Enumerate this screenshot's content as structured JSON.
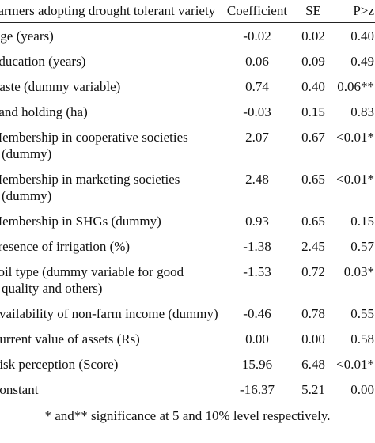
{
  "table": {
    "headers": {
      "variable": "Farmers adopting drought tolerant variety",
      "coefficient": "Coefficient",
      "se": "SE",
      "p": "P>z"
    },
    "rows": [
      {
        "variable": "Age (years)",
        "coefficient": "-0.02",
        "se": "0.02",
        "p": "0.40"
      },
      {
        "variable": "Education (years)",
        "coefficient": "0.06",
        "se": "0.09",
        "p": "0.49"
      },
      {
        "variable": "Caste (dummy variable)",
        "coefficient": "0.74",
        "se": "0.40",
        "p": "0.06**"
      },
      {
        "variable": "Land holding (ha)",
        "coefficient": "-0.03",
        "se": "0.15",
        "p": "0.83"
      },
      {
        "variable": "Membership in cooperative societies  (dummy)",
        "coefficient": "2.07",
        "se": "0.67",
        "p": "<0.01*"
      },
      {
        "variable": "Membership in marketing societies (dummy)",
        "coefficient": "2.48",
        "se": "0.65",
        "p": "<0.01*"
      },
      {
        "variable": "Membership in SHGs (dummy)",
        "coefficient": "0.93",
        "se": "0.65",
        "p": "0.15"
      },
      {
        "variable": "Presence of irrigation (%)",
        "coefficient": "-1.38",
        "se": "2.45",
        "p": "0.57"
      },
      {
        "variable": "Soil type (dummy variable for good quality and others)",
        "coefficient": "-1.53",
        "se": "0.72",
        "p": "0.03*"
      },
      {
        "variable": "Availability of non-farm income (dummy)",
        "coefficient": "-0.46",
        "se": "0.78",
        "p": "0.55"
      },
      {
        "variable": "Current value of assets (Rs)",
        "coefficient": "0.00",
        "se": "0.00",
        "p": "0.58"
      },
      {
        "variable": "Risk perception (Score)",
        "coefficient": "15.96",
        "se": "6.48",
        "p": "<0.01*"
      },
      {
        "variable": "Constant",
        "coefficient": "-16.37",
        "se": "5.21",
        "p": "0.00"
      }
    ],
    "footnote": "* and** significance at 5 and 10% level respectively."
  }
}
